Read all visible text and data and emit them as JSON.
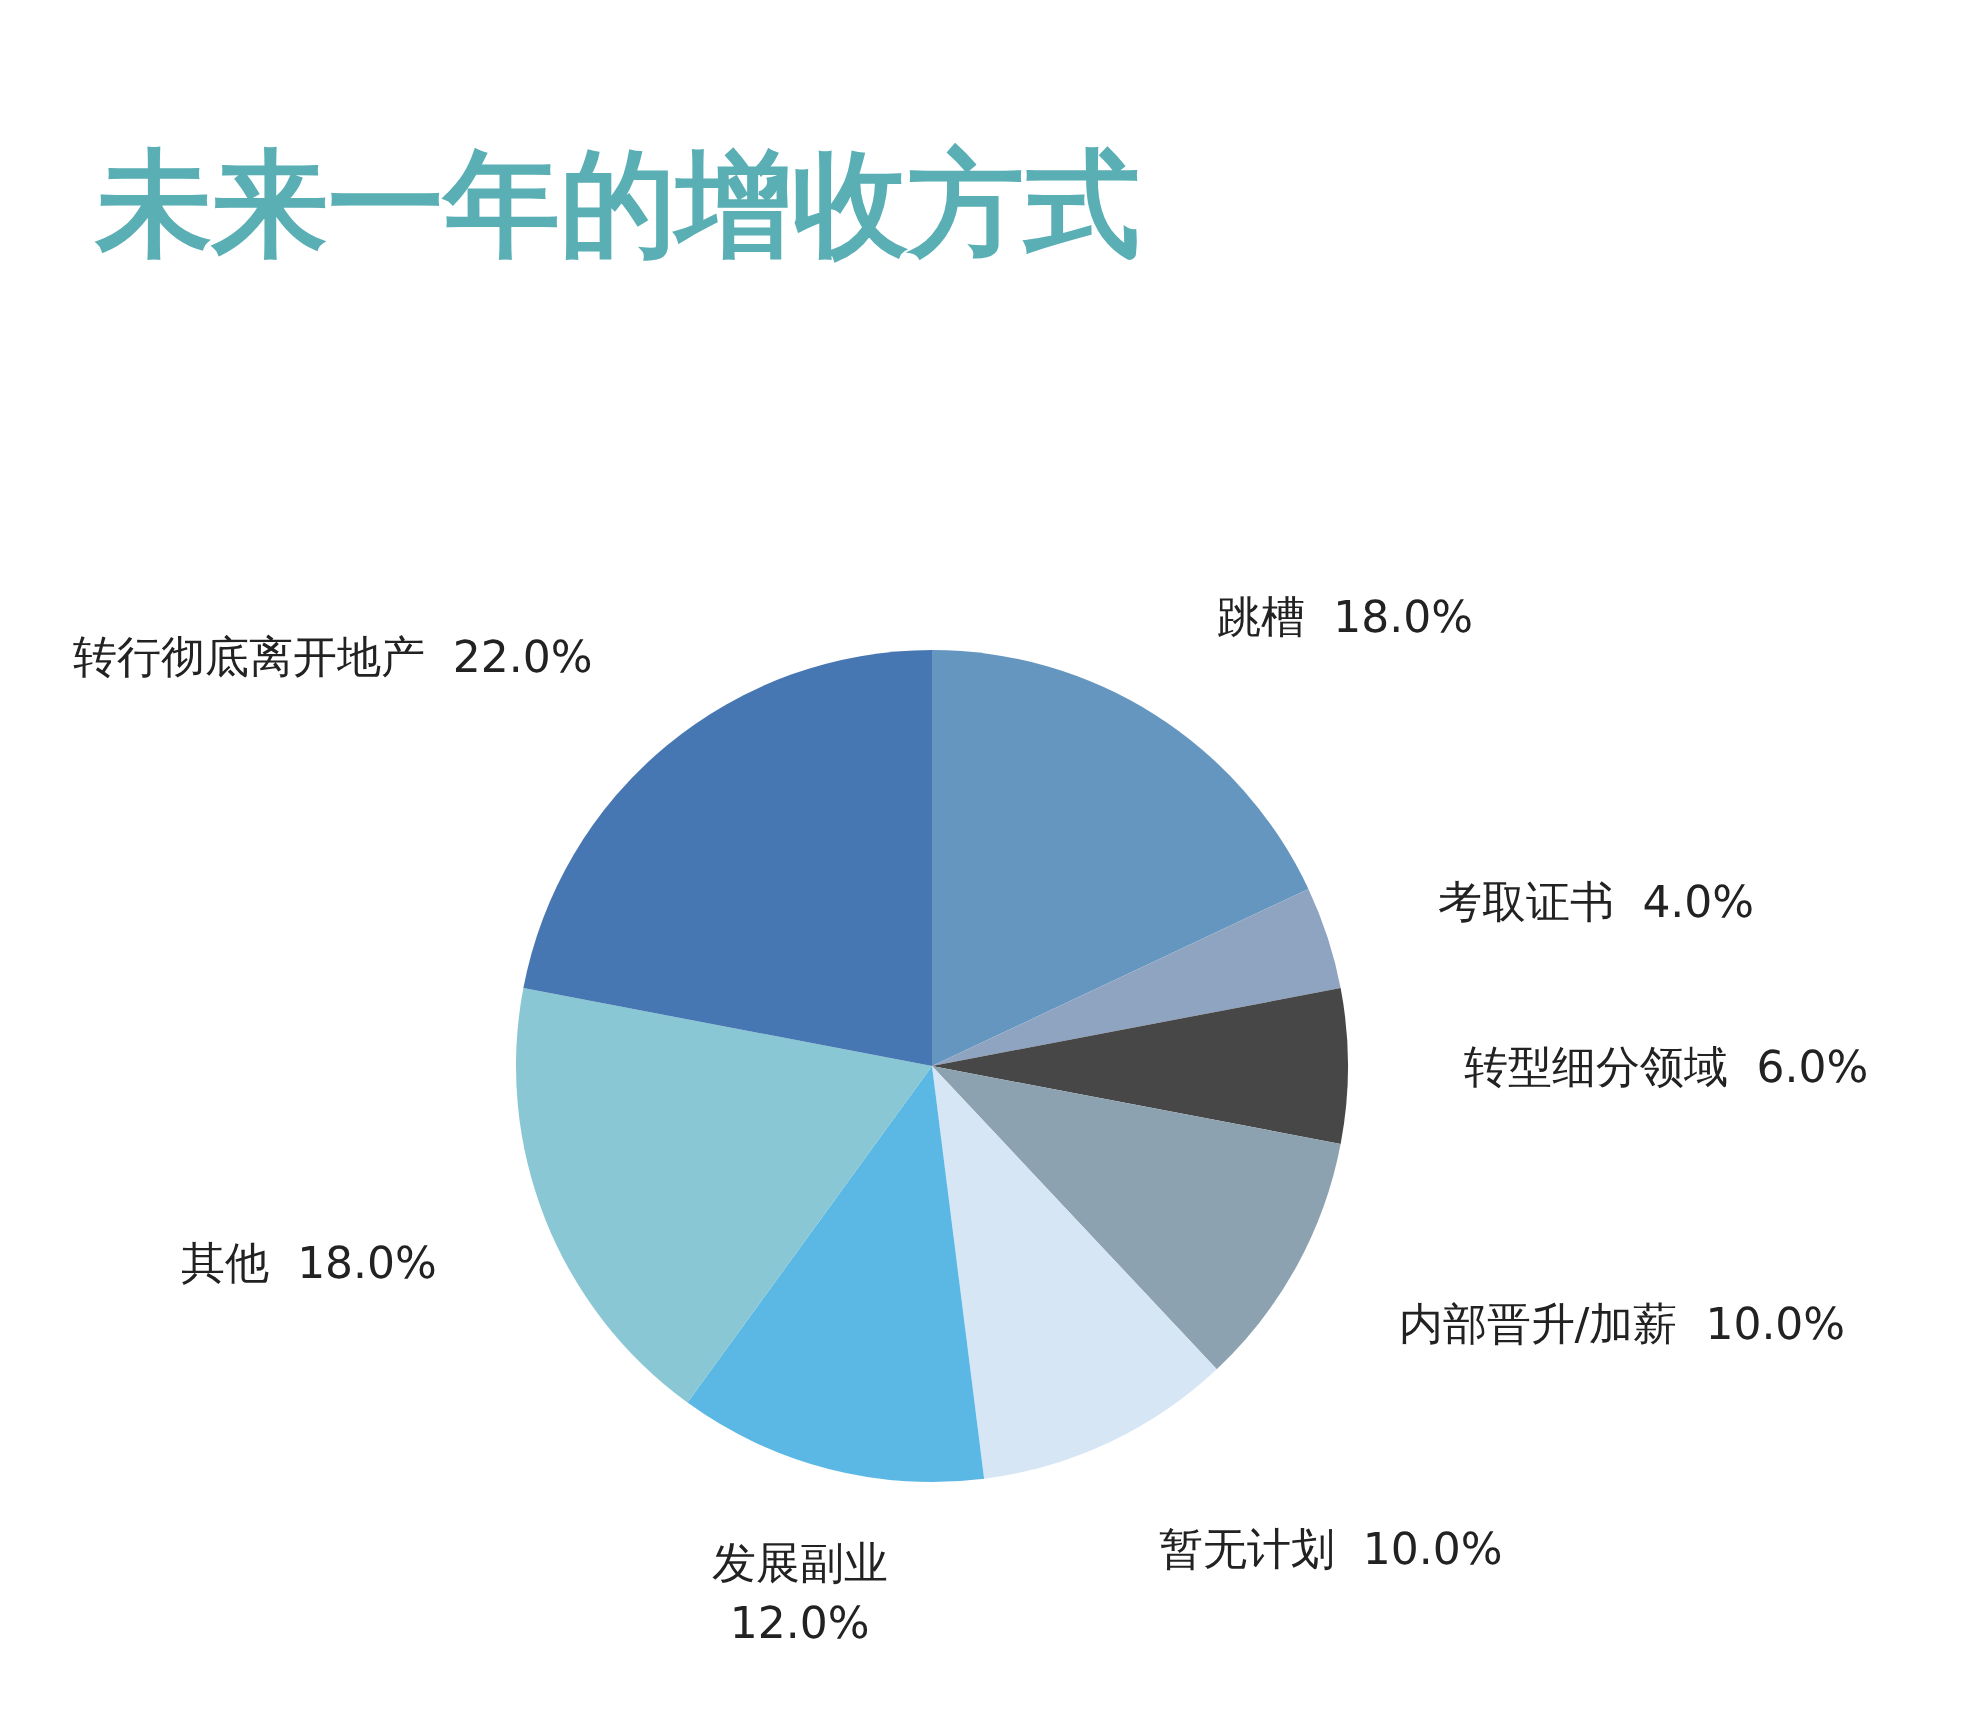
{
  "chart_data": {
    "type": "pie",
    "title": "未来一年的增收方式",
    "categories": [
      "跳槽",
      "考取证书",
      "转型细分领域",
      "内部晋升/加薪",
      "暂无计划",
      "发展副业",
      "其他",
      "转行彻底离开地产"
    ],
    "values": [
      18,
      4,
      6,
      10,
      10,
      12,
      18,
      22
    ],
    "value_labels": [
      "18.0%",
      "4.0%",
      "6.0%",
      "10.0%",
      "10.0%",
      "12.0%",
      "18.0%",
      "22.0%"
    ],
    "colors": [
      "#6596bf",
      "#8fa4c0",
      "#474747",
      "#8da2b0",
      "#d6e6f4",
      "#5bb8e4",
      "#88c7d3",
      "#4777b2"
    ]
  }
}
